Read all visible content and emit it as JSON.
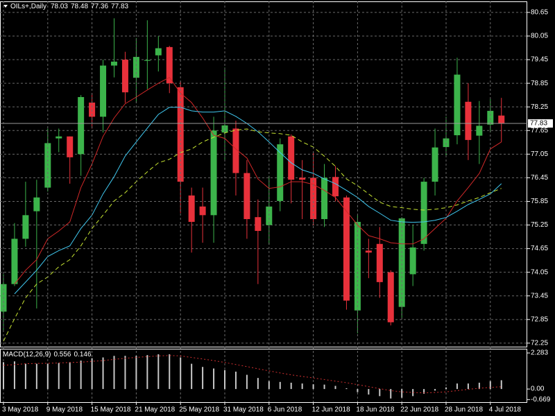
{
  "chart_data": [
    {
      "type": "candlestick",
      "title": "OILs+,Daily",
      "categories": [
        "3 May 2018",
        null,
        null,
        null,
        "9 May 2018",
        null,
        null,
        null,
        "15 May 2018",
        null,
        null,
        null,
        "21 May 2018",
        null,
        null,
        null,
        "25 May 2018",
        null,
        null,
        null,
        "31 May 2018",
        null,
        null,
        null,
        "6 Jun 2018",
        null,
        null,
        null,
        "12 Jun 2018",
        null,
        null,
        null,
        "18 Jun 2018",
        null,
        null,
        null,
        "22 Jun 2018",
        null,
        null,
        null,
        "28 Jun 2018",
        null,
        null,
        null,
        "4 Jul 2018",
        null
      ],
      "open": [
        73.05,
        73.75,
        74.9,
        75.6,
        76.2,
        77.45,
        77.5,
        77.05,
        78.36,
        78.0,
        79.3,
        79.45,
        78.99,
        79.42,
        79.56,
        79.77,
        78.75,
        76.0,
        75.72,
        75.5,
        77.6,
        77.7,
        76.57,
        75.45,
        75.25,
        75.86,
        77.5,
        76.45,
        76.45,
        75.4,
        76.47,
        75.95,
        73.08,
        74.6,
        74.77,
        74.05,
        73.17,
        74.0,
        74.77,
        76.35,
        77.23,
        77.53,
        78.38,
        77.52,
        77.8,
        78.03
      ],
      "high": [
        74.0,
        75.3,
        76.35,
        76.4,
        77.7,
        77.7,
        77.5,
        78.55,
        78.6,
        79.45,
        80.5,
        79.65,
        80.0,
        80.45,
        80.05,
        79.8,
        78.9,
        76.2,
        76.2,
        78.0,
        79.25,
        77.9,
        76.9,
        75.9,
        76.5,
        77.45,
        77.55,
        76.9,
        77.1,
        76.8,
        76.75,
        76.0,
        75.5,
        74.9,
        75.2,
        74.1,
        75.45,
        75.25,
        76.45,
        77.7,
        78.0,
        79.5,
        78.85,
        78.4,
        78.45,
        78.48
      ],
      "low": [
        72.55,
        73.7,
        74.7,
        73.13,
        76.1,
        77.1,
        76.3,
        76.5,
        77.7,
        77.6,
        79.0,
        78.35,
        78.35,
        78.7,
        79.15,
        78.6,
        75.55,
        74.55,
        74.8,
        74.8,
        76.9,
        76.0,
        74.9,
        73.75,
        74.75,
        75.6,
        75.8,
        75.4,
        75.25,
        75.2,
        75.85,
        73.1,
        72.5,
        73.9,
        73.4,
        72.7,
        72.9,
        73.7,
        74.6,
        76.0,
        77.0,
        77.3,
        76.9,
        76.8,
        77.6,
        77.36
      ],
      "close": [
        73.75,
        74.9,
        75.5,
        75.95,
        77.33,
        77.5,
        76.97,
        78.5,
        78.0,
        79.3,
        79.4,
        78.62,
        79.52,
        79.44,
        79.74,
        78.85,
        76.35,
        75.33,
        75.5,
        77.65,
        77.78,
        76.57,
        75.4,
        75.1,
        75.72,
        77.3,
        76.4,
        76.4,
        75.4,
        76.45,
        75.98,
        73.33,
        75.33,
        74.55,
        73.8,
        72.78,
        75.42,
        74.68,
        76.35,
        77.22,
        77.45,
        79.07,
        77.41,
        77.77,
        78.15,
        77.83
      ],
      "up_color": "#3cb44b",
      "down_color": "#e8313b",
      "series": [
        {
          "color": "#d02828",
          "style": "solid",
          "values": [
            null,
            73.75,
            74.1,
            74.37,
            74.9,
            75.1,
            75.33,
            76.2,
            76.8,
            77.5,
            77.97,
            78.33,
            78.5,
            78.68,
            78.85,
            79.0,
            78.6,
            78.36,
            77.97,
            77.53,
            77.45,
            77.18,
            76.95,
            76.42,
            76.18,
            76.22,
            76.35,
            76.35,
            76.28,
            76.13,
            75.95,
            75.6,
            75.25,
            74.98,
            74.9,
            74.8,
            74.77,
            74.77,
            74.9,
            75.16,
            75.42,
            75.86,
            76.2,
            76.56,
            77.18,
            77.36
          ]
        },
        {
          "color": "#40c8f0",
          "style": "solid",
          "values": [
            null,
            73.5,
            73.8,
            74.1,
            74.45,
            74.6,
            74.72,
            75.16,
            75.5,
            76.04,
            76.48,
            77.0,
            77.36,
            77.71,
            78.06,
            78.24,
            78.24,
            78.15,
            78.12,
            78.12,
            78.15,
            78.01,
            77.83,
            77.62,
            77.36,
            77.09,
            76.83,
            76.65,
            76.56,
            76.42,
            76.3,
            76.13,
            75.95,
            75.72,
            75.55,
            75.37,
            75.33,
            75.32,
            75.33,
            75.37,
            75.44,
            75.6,
            75.77,
            75.9,
            76.04,
            76.3
          ]
        },
        {
          "color": "#c8e632",
          "style": "dashed",
          "values": [
            72.3,
            72.87,
            73.4,
            73.75,
            73.93,
            74.19,
            74.37,
            74.72,
            75.16,
            75.5,
            75.86,
            76.07,
            76.35,
            76.6,
            76.83,
            76.92,
            77.09,
            77.18,
            77.36,
            77.48,
            77.59,
            77.66,
            77.69,
            77.62,
            77.59,
            77.57,
            77.53,
            77.36,
            77.23,
            77.0,
            76.74,
            76.42,
            76.25,
            76.04,
            75.83,
            75.72,
            75.69,
            75.65,
            75.63,
            75.65,
            75.69,
            75.76,
            75.86,
            75.95,
            76.07,
            76.18
          ]
        }
      ],
      "ylim": [
        72.16,
        80.93
      ],
      "yticks": [
        80.65,
        80.05,
        79.45,
        78.85,
        78.25,
        77.65,
        77.05,
        76.45,
        75.85,
        75.25,
        74.65,
        74.05,
        73.45,
        72.85,
        72.25
      ],
      "grid": true
    },
    {
      "type": "bar",
      "title": "MACD(12,26,9)",
      "color": "#c8c8c8",
      "values": [
        1.7,
        1.75,
        1.6,
        1.6,
        1.6,
        1.65,
        1.7,
        1.8,
        1.95,
        2.0,
        2.1,
        2.1,
        2.1,
        2.15,
        2.2,
        2.2,
        2.0,
        1.6,
        1.4,
        1.3,
        1.2,
        1.1,
        0.9,
        0.7,
        0.5,
        0.45,
        0.4,
        0.35,
        0.3,
        0.28,
        0.2,
        0.05,
        -0.2,
        -0.35,
        -0.45,
        -0.6,
        -0.55,
        -0.45,
        -0.3,
        -0.1,
        0.1,
        0.35,
        0.35,
        0.4,
        0.5,
        0.556
      ],
      "series": [
        {
          "color": "#d03030",
          "style": "dotted",
          "values": [
            1.5,
            1.55,
            1.6,
            1.62,
            1.63,
            1.65,
            1.68,
            1.7,
            1.75,
            1.8,
            1.88,
            1.95,
            2.0,
            2.05,
            2.1,
            2.12,
            2.1,
            2.0,
            1.9,
            1.8,
            1.68,
            1.55,
            1.42,
            1.28,
            1.15,
            1.02,
            0.9,
            0.8,
            0.7,
            0.6,
            0.5,
            0.4,
            0.28,
            0.15,
            0.02,
            -0.1,
            -0.18,
            -0.22,
            -0.24,
            -0.22,
            -0.18,
            -0.1,
            -0.02,
            0.05,
            0.1,
            0.146
          ]
        }
      ],
      "ylim": [
        -0.83,
        2.55
      ],
      "yticks": [
        2.283,
        {
          "value": 0,
          "label": "0.00"
        },
        -0.669
      ]
    }
  ]
}
